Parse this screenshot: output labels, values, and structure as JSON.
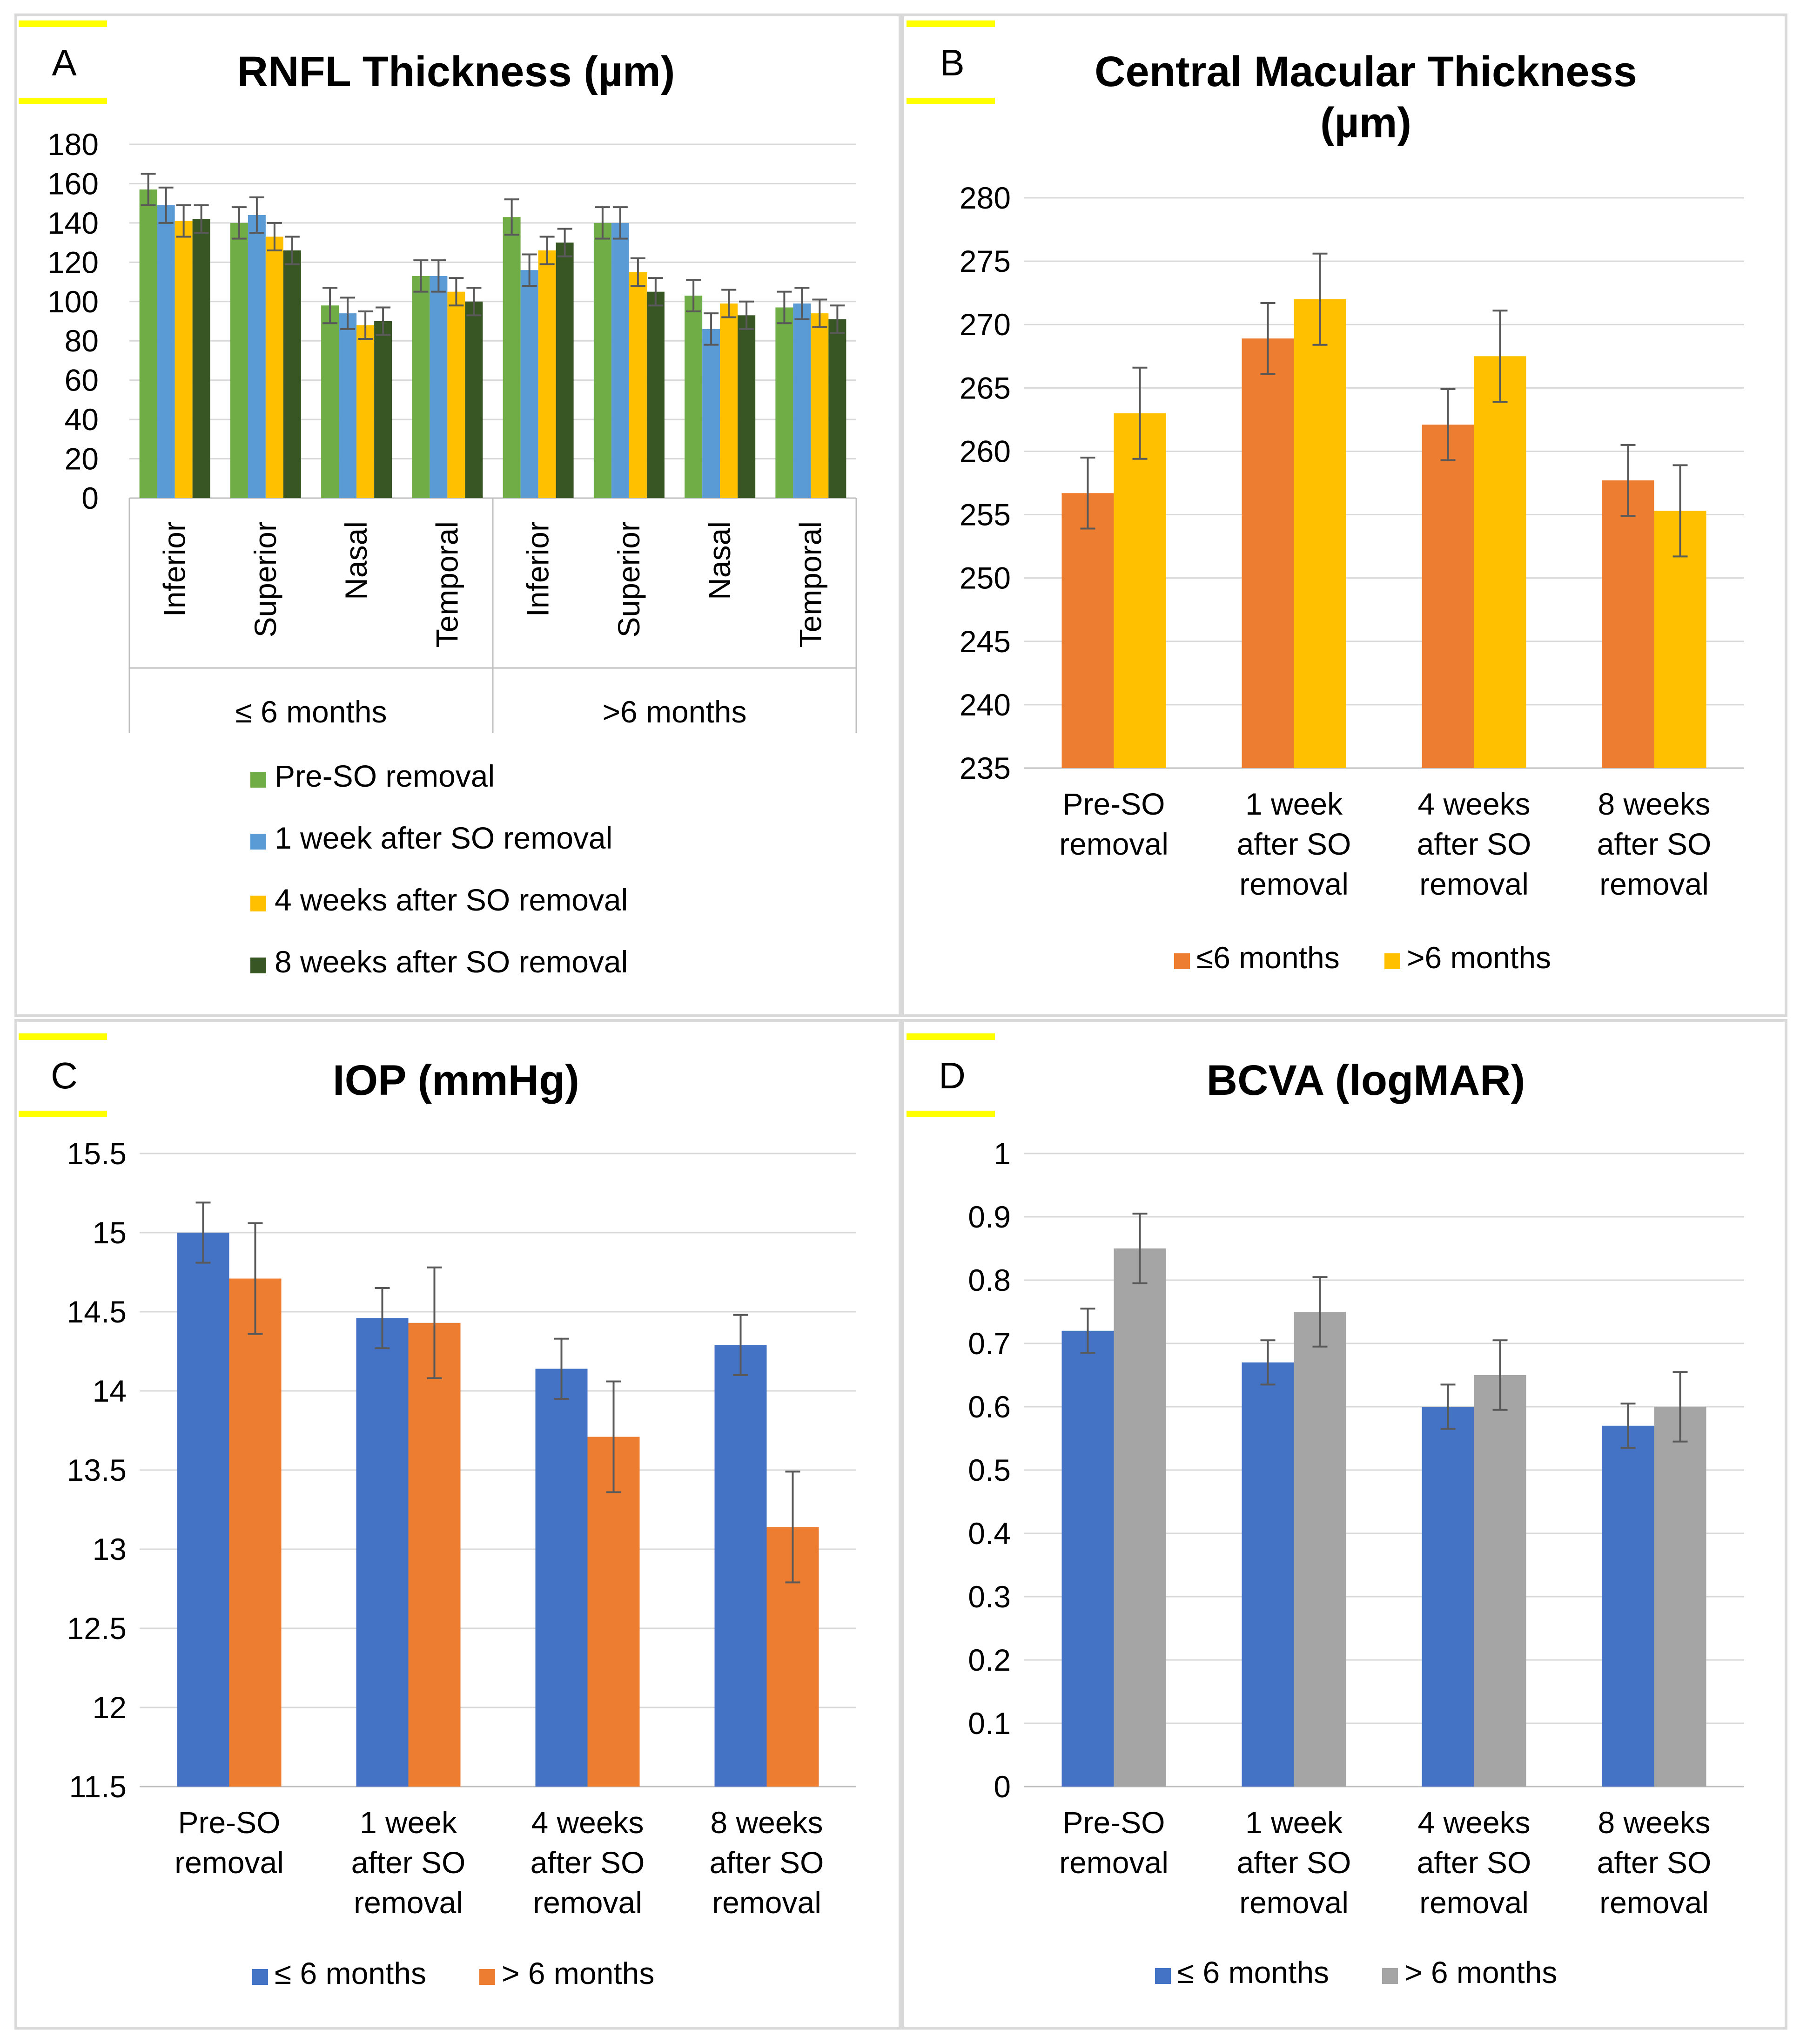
{
  "panels": {
    "A": {
      "letter": "A",
      "chart_data": {
        "type": "bar",
        "title": "RNFL Thickness (µm)",
        "ylim": [
          0,
          180
        ],
        "yticks": [
          0,
          20,
          40,
          60,
          80,
          100,
          120,
          140,
          160,
          180
        ],
        "groups": [
          {
            "label": "≤ 6 months",
            "categories": [
              "Inferior",
              "Superior",
              "Nasal",
              "Temporal"
            ]
          },
          {
            "label": ">6 months",
            "categories": [
              "Inferior",
              "Superior",
              "Nasal",
              "Temporal"
            ]
          }
        ],
        "series": [
          {
            "name": "Pre-SO removal",
            "color": "#70ad47",
            "values": [
              157,
              140,
              98,
              113,
              143,
              140,
              103,
              97
            ],
            "errors": [
              8,
              8,
              9,
              8,
              9,
              8,
              8,
              8
            ]
          },
          {
            "name": "1 week after SO removal",
            "color": "#5b9bd5",
            "values": [
              149,
              144,
              94,
              113,
              116,
              140,
              86,
              99
            ],
            "errors": [
              9,
              9,
              8,
              8,
              8,
              8,
              8,
              8
            ]
          },
          {
            "name": "4 weeks after SO removal",
            "color": "#ffc000",
            "values": [
              141,
              133,
              88,
              105,
              126,
              115,
              99,
              94
            ],
            "errors": [
              8,
              7,
              7,
              7,
              7,
              7,
              7,
              7
            ]
          },
          {
            "name": "8 weeks after SO removal",
            "color": "#375623",
            "values": [
              142,
              126,
              90,
              100,
              130,
              105,
              93,
              91
            ],
            "errors": [
              7,
              7,
              7,
              7,
              7,
              7,
              7,
              7
            ]
          }
        ]
      }
    },
    "B": {
      "letter": "B",
      "chart_data": {
        "type": "bar",
        "title": "Central Macular Thickness (µm)",
        "title_lines": [
          "Central Macular Thickness",
          "(µm)"
        ],
        "ylim": [
          235,
          280
        ],
        "yticks": [
          235,
          240,
          245,
          250,
          255,
          260,
          265,
          270,
          275,
          280
        ],
        "categories": [
          [
            "Pre-SO",
            "removal"
          ],
          [
            "1 week",
            "after SO",
            "removal"
          ],
          [
            "4 weeks",
            "after SO",
            "removal"
          ],
          [
            "8 weeks",
            "after SO",
            "removal"
          ]
        ],
        "series": [
          {
            "name": "≤6 months",
            "color": "#ed7d31",
            "values": [
              256.7,
              268.9,
              262.1,
              257.7
            ],
            "errors": [
              2.8,
              2.8,
              2.8,
              2.8
            ]
          },
          {
            "name": ">6 months",
            "color": "#ffc000",
            "values": [
              263.0,
              272.0,
              267.5,
              255.3
            ],
            "errors": [
              3.6,
              3.6,
              3.6,
              3.6
            ]
          }
        ]
      }
    },
    "C": {
      "letter": "C",
      "chart_data": {
        "type": "bar",
        "title": "IOP (mmHg)",
        "ylim": [
          11.5,
          15.5
        ],
        "yticks": [
          11.5,
          12,
          12.5,
          13,
          13.5,
          14,
          14.5,
          15,
          15.5
        ],
        "categories": [
          [
            "Pre-SO",
            "removal"
          ],
          [
            "1 week",
            "after SO",
            "removal"
          ],
          [
            "4 weeks",
            "after SO",
            "removal"
          ],
          [
            "8 weeks",
            "after SO",
            "removal"
          ]
        ],
        "series": [
          {
            "name": "≤ 6 months",
            "color": "#4472c4",
            "values": [
              15.0,
              14.46,
              14.14,
              14.29
            ],
            "errors": [
              0.19,
              0.19,
              0.19,
              0.19
            ]
          },
          {
            "name": "> 6 months",
            "color": "#ed7d31",
            "values": [
              14.71,
              14.43,
              13.71,
              13.14
            ],
            "errors": [
              0.35,
              0.35,
              0.35,
              0.35
            ]
          }
        ]
      }
    },
    "D": {
      "letter": "D",
      "chart_data": {
        "type": "bar",
        "title": "BCVA (logMAR)",
        "ylim": [
          0,
          1
        ],
        "yticks": [
          0,
          0.1,
          0.2,
          0.3,
          0.4,
          0.5,
          0.6,
          0.7,
          0.8,
          0.9,
          1
        ],
        "categories": [
          [
            "Pre-SO",
            "removal"
          ],
          [
            "1 week",
            "after SO",
            "removal"
          ],
          [
            "4 weeks",
            "after SO",
            "removal"
          ],
          [
            "8 weeks",
            "after SO",
            "removal"
          ]
        ],
        "series": [
          {
            "name": "≤ 6 months",
            "color": "#4472c4",
            "values": [
              0.72,
              0.67,
              0.6,
              0.57
            ],
            "errors": [
              0.035,
              0.035,
              0.035,
              0.035
            ]
          },
          {
            "name": "> 6 months",
            "color": "#a5a5a5",
            "values": [
              0.85,
              0.75,
              0.65,
              0.6
            ],
            "errors": [
              0.055,
              0.055,
              0.055,
              0.055
            ]
          }
        ]
      }
    }
  }
}
